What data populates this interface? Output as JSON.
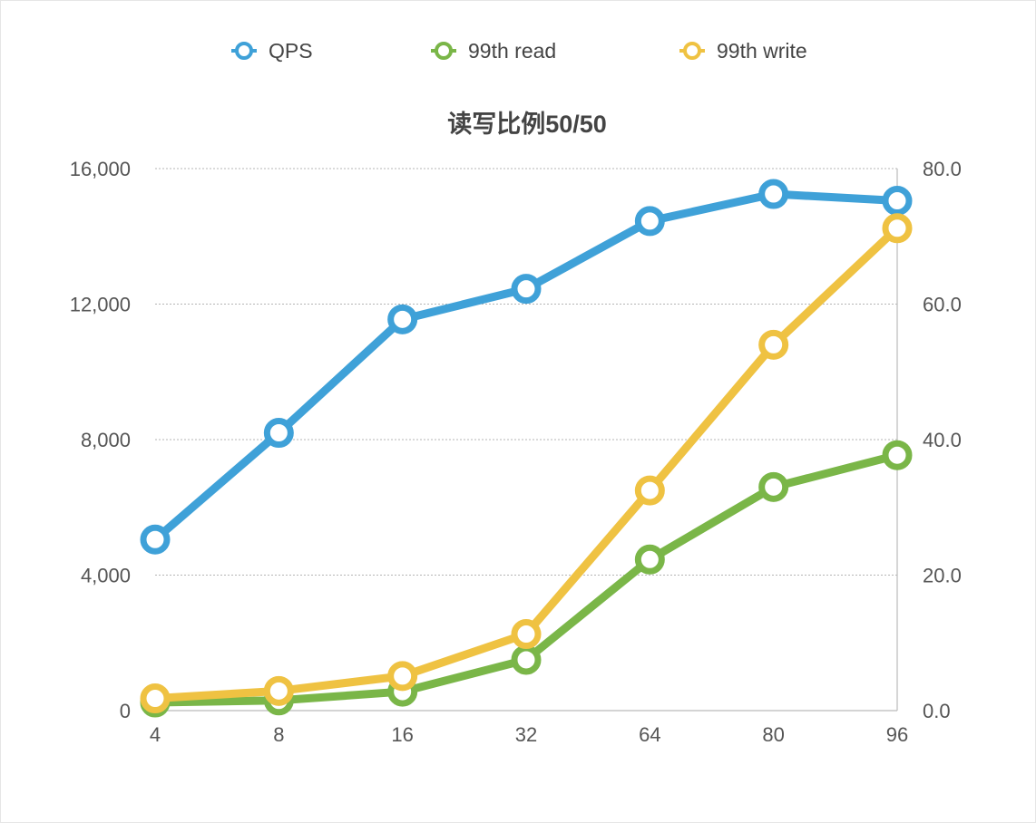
{
  "chart_data": {
    "type": "line",
    "title": "读写比例50/50",
    "categories": [
      "4",
      "8",
      "16",
      "32",
      "64",
      "80",
      "96"
    ],
    "y_left": {
      "range": [
        0,
        16000
      ],
      "ticks": [
        "0",
        "4,000",
        "8,000",
        "12,000",
        "16,000"
      ]
    },
    "y_right": {
      "range": [
        0,
        80
      ],
      "ticks": [
        "0.0",
        "20.0",
        "40.0",
        "60.0",
        "80.0"
      ]
    },
    "grid": true,
    "legend_position": "top",
    "series": [
      {
        "name": "QPS",
        "axis": "left",
        "color": "#3fa1d8",
        "values": [
          5050,
          8200,
          11550,
          12450,
          14450,
          15250,
          15050
        ]
      },
      {
        "name": "99th read",
        "axis": "right",
        "color": "#7ab648",
        "values": [
          1.2,
          1.5,
          2.8,
          7.5,
          22.3,
          33.0,
          37.7
        ]
      },
      {
        "name": "99th write",
        "axis": "right",
        "color": "#efc242",
        "values": [
          1.8,
          2.9,
          5.1,
          11.3,
          32.5,
          54.0,
          71.2
        ]
      }
    ]
  }
}
